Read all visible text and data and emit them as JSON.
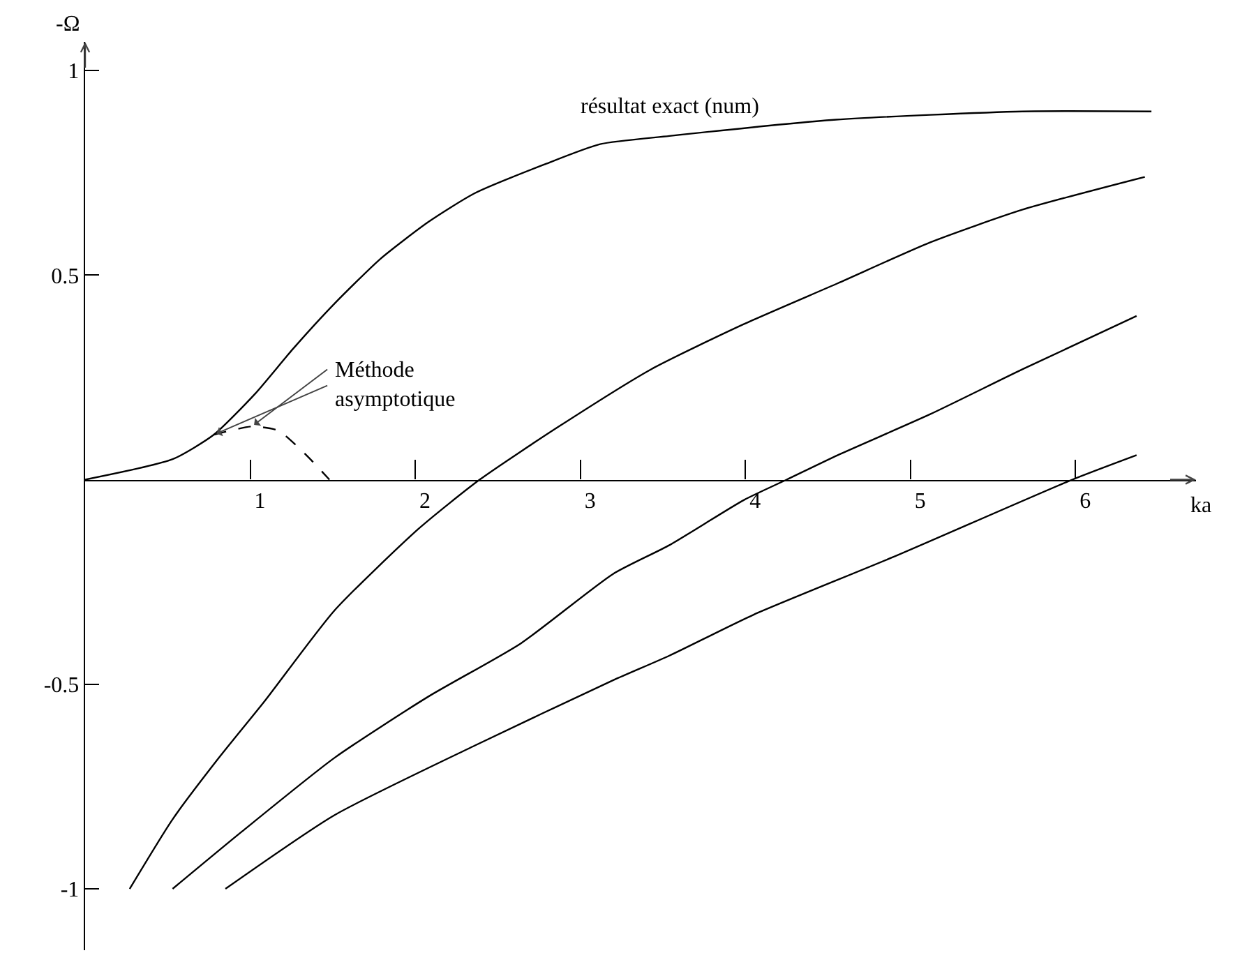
{
  "chart_data": {
    "type": "line",
    "xlabel": "ka",
    "ylabel": "-Ω",
    "xlim": [
      0,
      6.73
    ],
    "ylim": [
      -1.15,
      1.07
    ],
    "xticks": [
      1,
      2,
      3,
      4,
      5,
      6
    ],
    "yticks": [
      -1,
      -0.5,
      0.5,
      1
    ],
    "grid": false,
    "legend": false,
    "marker": "none",
    "series": [
      {
        "name": "résultat exact (num)",
        "color": "#000000",
        "line_style": "solid",
        "x": [
          0,
          0.53,
          0.78,
          1.03,
          1.26,
          1.51,
          1.79,
          2.08,
          2.36,
          2.78,
          3.12,
          3.54,
          4.55,
          5.68,
          6.46
        ],
        "values": [
          0,
          0.05,
          0.11,
          0.21,
          0.32,
          0.43,
          0.54,
          0.63,
          0.7,
          0.77,
          0.82,
          0.84,
          0.88,
          0.9,
          0.9
        ]
      },
      {
        "name": "Méthode asymptotique",
        "color": "#000000",
        "line_style": "dashed",
        "x": [
          0.78,
          1.01,
          1.17,
          1.34,
          1.48
        ],
        "values": [
          0.11,
          0.13,
          0.12,
          0.06,
          0
        ]
      },
      {
        "color": "#000000",
        "line_style": "solid",
        "x": [
          0.27,
          0.53,
          0.81,
          1.09,
          1.51,
          2.02,
          2.39,
          2.87,
          3.43,
          3.99,
          4.56,
          5.12,
          5.68,
          6.42
        ],
        "values": [
          -1,
          -0.83,
          -0.68,
          -0.54,
          -0.32,
          -0.12,
          0,
          0.13,
          0.27,
          0.38,
          0.48,
          0.58,
          0.66,
          0.74
        ]
      },
      {
        "color": "#000000",
        "line_style": "solid",
        "x": [
          0.53,
          0.95,
          1.51,
          2.08,
          2.64,
          3.2,
          3.54,
          3.99,
          4.25,
          4.56,
          5.12,
          5.68,
          6.37
        ],
        "values": [
          -1,
          -0.86,
          -0.68,
          -0.53,
          -0.4,
          -0.23,
          -0.16,
          -0.05,
          0,
          0.06,
          0.16,
          0.27,
          0.4
        ]
      },
      {
        "color": "#000000",
        "line_style": "solid",
        "x": [
          0.85,
          1.51,
          2.36,
          3.2,
          3.54,
          4.05,
          4.89,
          5.98,
          6.37
        ],
        "values": [
          -1,
          -0.82,
          -0.65,
          -0.49,
          -0.43,
          -0.33,
          -0.19,
          0,
          0.06
        ]
      }
    ]
  }
}
